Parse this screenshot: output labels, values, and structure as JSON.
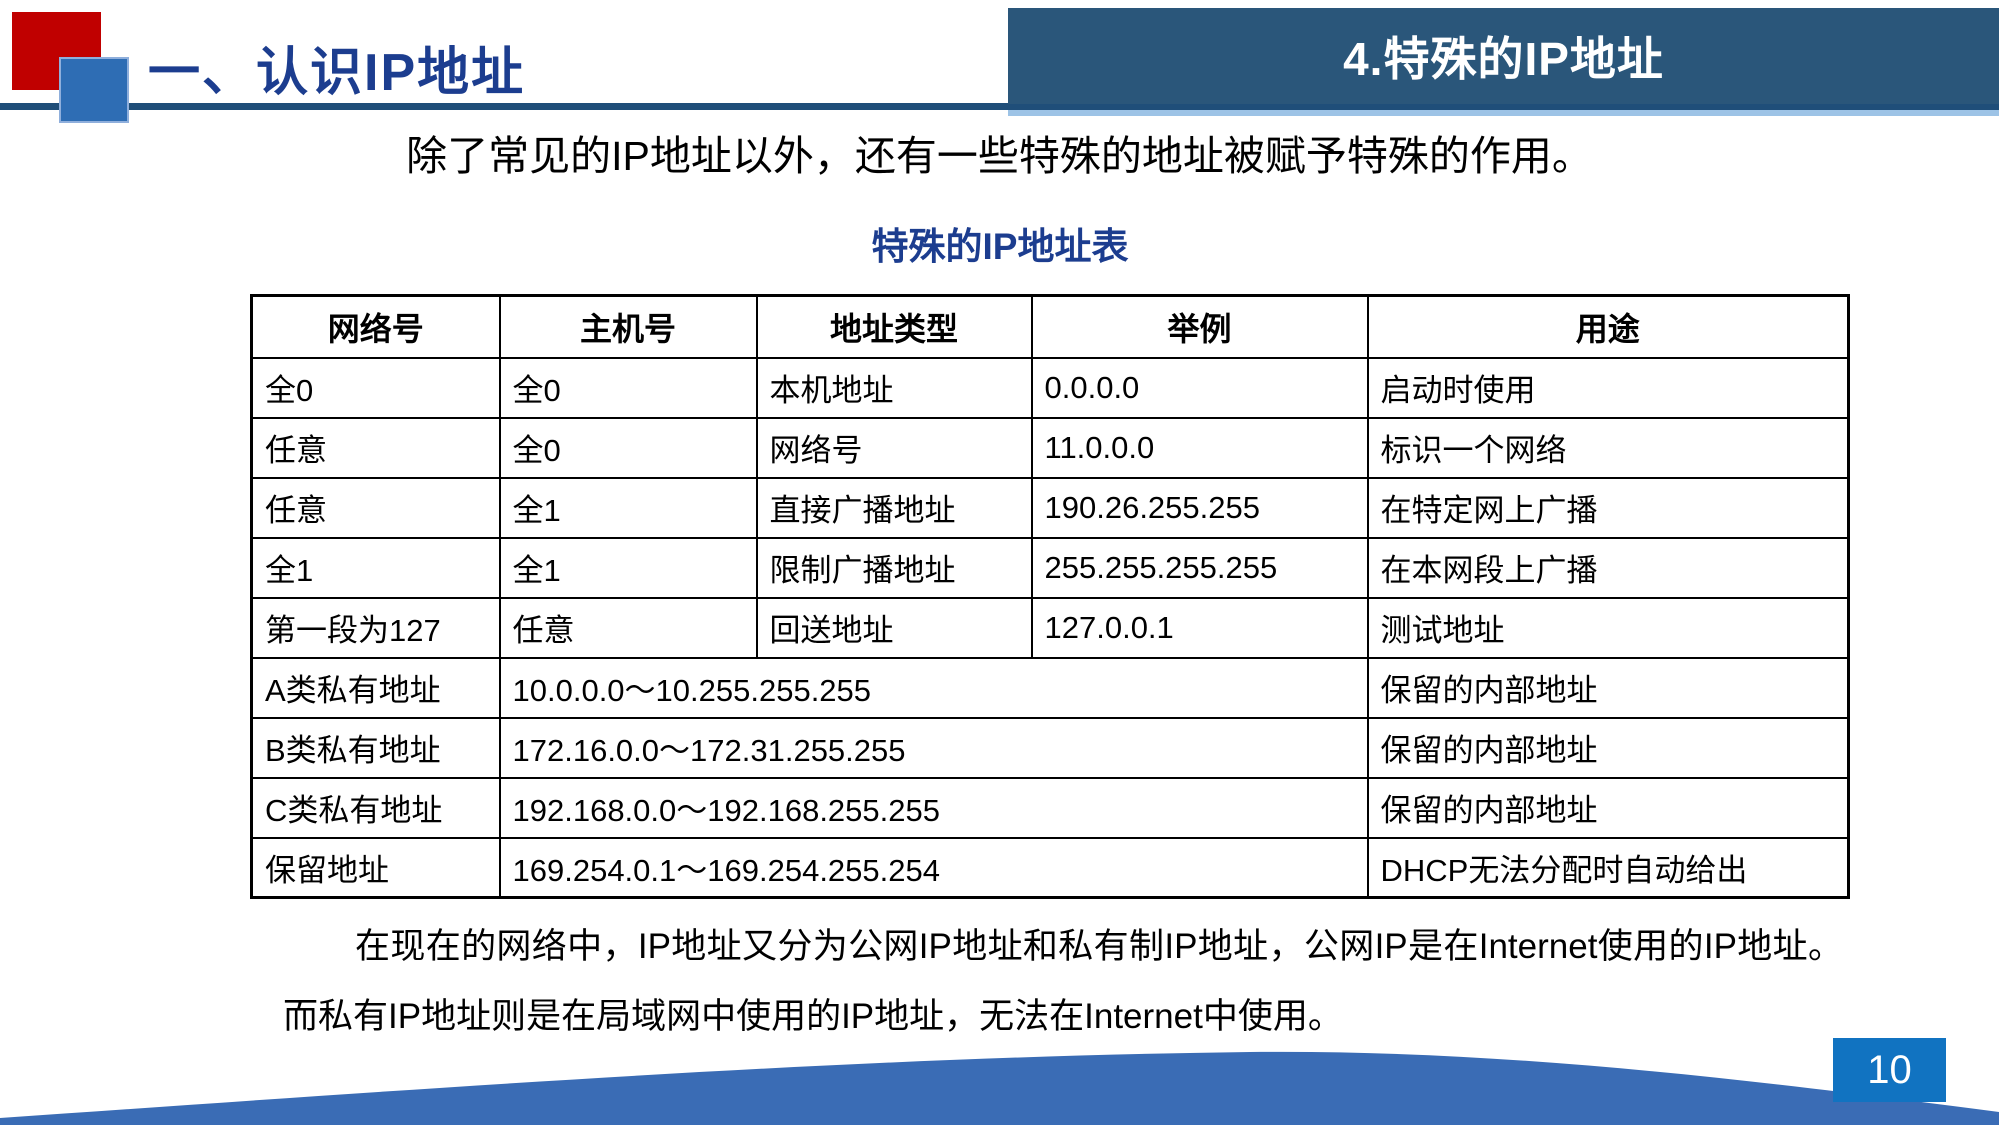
{
  "header": {
    "section_title": "一、认识IP地址",
    "banner_title": "4.特殊的IP地址"
  },
  "intro": "除了常见的IP地址以外，还有一些特殊的地址被赋予特殊的作用。",
  "table": {
    "title": "特殊的IP地址表",
    "columns": [
      "网络号",
      "主机号",
      "地址类型",
      "举例",
      "用途"
    ],
    "rows": [
      [
        "全0",
        "全0",
        "本机地址",
        "0.0.0.0",
        "启动时使用"
      ],
      [
        "任意",
        "全0",
        "网络号",
        "11.0.0.0",
        "标识一个网络"
      ],
      [
        "任意",
        "全1",
        "直接广播地址",
        "190.26.255.255",
        "在特定网上广播"
      ],
      [
        "全1",
        "全1",
        "限制广播地址",
        "255.255.255.255",
        "在本网段上广播"
      ],
      [
        "第一段为127",
        "任意",
        "回送地址",
        "127.0.0.1",
        "测试地址"
      ]
    ],
    "merged_rows": [
      [
        "A类私有地址",
        "10.0.0.0～10.255.255.255",
        "保留的内部地址"
      ],
      [
        "B类私有地址",
        "172.16.0.0～172.31.255.255",
        "保留的内部地址"
      ],
      [
        "C类私有地址",
        "192.168.0.0～192.168.255.255",
        "保留的内部地址"
      ],
      [
        "保留地址",
        "169.254.0.1～169.254.255.254",
        "DHCP无法分配时自动给出"
      ]
    ]
  },
  "paragraph": "在现在的网络中，IP地址又分为公网IP地址和私有制IP地址，公网IP是在Internet使用的IP地址。而私有IP地址则是在局域网中使用的IP地址，无法在Internet中使用。",
  "footer": {
    "page_number": "10"
  },
  "colors": {
    "accent_red": "#C00000",
    "accent_blue": "#2E6DB4",
    "navy_bar": "#1F4E79",
    "title_blue": "#1C3D8F",
    "banner_bg": "#2A567A",
    "footer_wave": "#3A6CB5",
    "page_badge": "#1173C1",
    "light_line": "#9DC3E6"
  }
}
